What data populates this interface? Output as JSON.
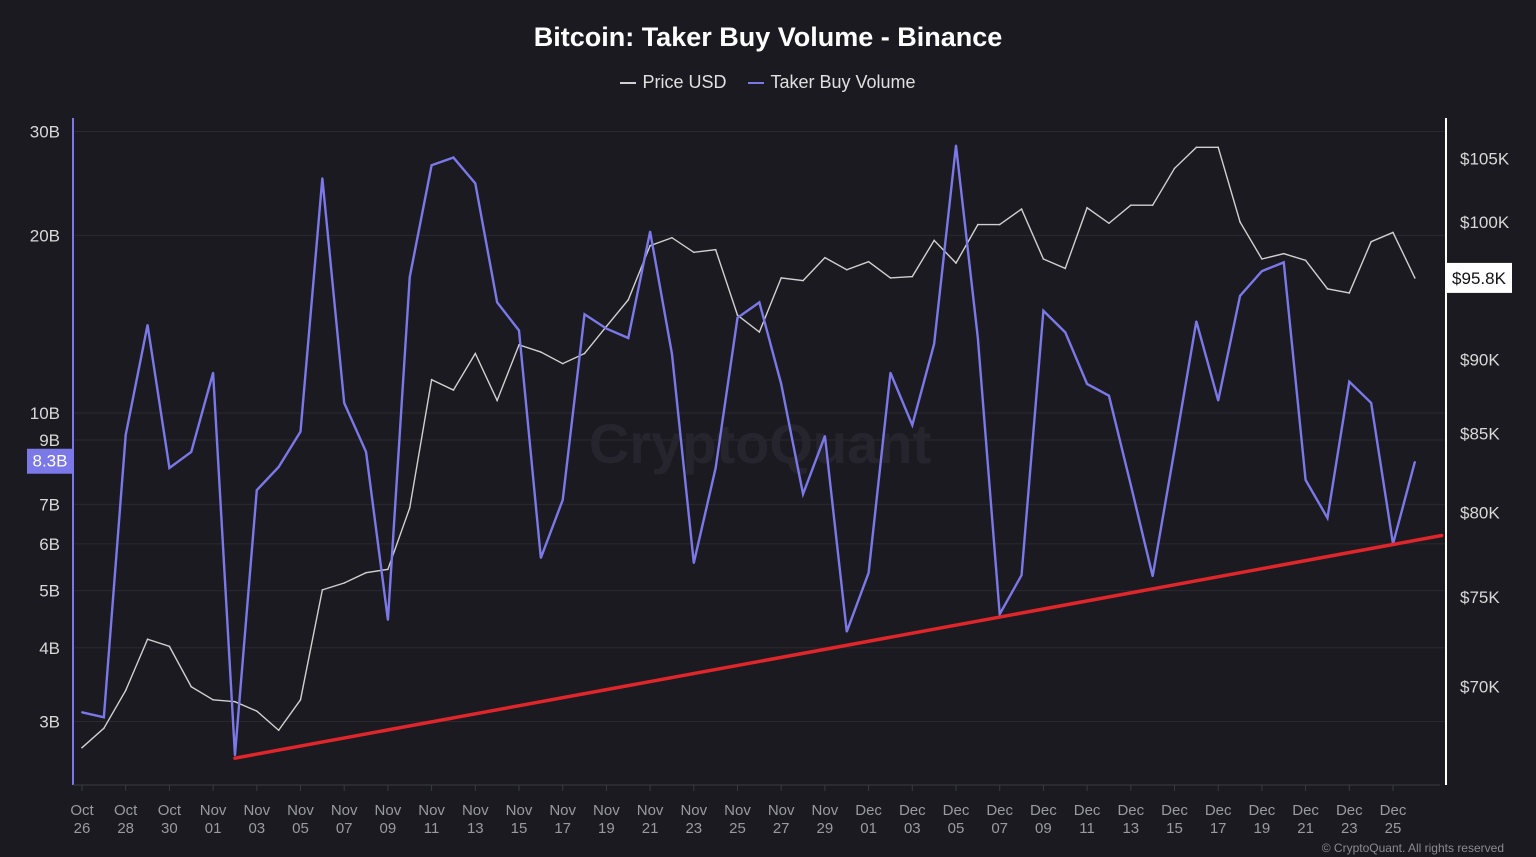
{
  "title": "Bitcoin: Taker Buy Volume - Binance",
  "watermark": "CryptoQuant",
  "footer": "© CryptoQuant. All rights reserved",
  "colors": {
    "background": "#1b1a20",
    "volume": "#7b78e8",
    "price": "#d0d0d0",
    "trendline": "#e0262b"
  },
  "chart_data": {
    "type": "line",
    "title": "Bitcoin: Taker Buy Volume - Binance",
    "legend_position": "top",
    "grid": true,
    "x": [
      "Oct 26",
      "Oct 27",
      "Oct 28",
      "Oct 29",
      "Oct 30",
      "Oct 31",
      "Nov 01",
      "Nov 02",
      "Nov 03",
      "Nov 04",
      "Nov 05",
      "Nov 06",
      "Nov 07",
      "Nov 08",
      "Nov 09",
      "Nov 10",
      "Nov 11",
      "Nov 12",
      "Nov 13",
      "Nov 14",
      "Nov 15",
      "Nov 16",
      "Nov 17",
      "Nov 18",
      "Nov 19",
      "Nov 20",
      "Nov 21",
      "Nov 22",
      "Nov 23",
      "Nov 24",
      "Nov 25",
      "Nov 26",
      "Nov 27",
      "Nov 28",
      "Nov 29",
      "Nov 30",
      "Dec 01",
      "Dec 02",
      "Dec 03",
      "Dec 04",
      "Dec 05",
      "Dec 06",
      "Dec 07",
      "Dec 08",
      "Dec 09",
      "Dec 10",
      "Dec 11",
      "Dec 12",
      "Dec 13",
      "Dec 14",
      "Dec 15",
      "Dec 16",
      "Dec 17",
      "Dec 18",
      "Dec 19",
      "Dec 20",
      "Dec 21",
      "Dec 22",
      "Dec 23",
      "Dec 24",
      "Dec 25",
      "Dec 26"
    ],
    "x_tick_labels": [
      "Oct 26",
      "Oct 28",
      "Oct 30",
      "Nov 01",
      "Nov 03",
      "Nov 05",
      "Nov 07",
      "Nov 09",
      "Nov 11",
      "Nov 13",
      "Nov 15",
      "Nov 17",
      "Nov 19",
      "Nov 21",
      "Nov 23",
      "Nov 25",
      "Nov 27",
      "Nov 29",
      "Dec 01",
      "Dec 03",
      "Dec 05",
      "Dec 07",
      "Dec 09",
      "Dec 11",
      "Dec 13",
      "Dec 15",
      "Dec 17",
      "Dec 19",
      "Dec 21",
      "Dec 23",
      "Dec 25"
    ],
    "series": [
      {
        "name": "Price USD",
        "axis": "right",
        "unit": "USD (K)",
        "values": [
          66.8,
          67.8,
          69.8,
          72.6,
          72.2,
          70.0,
          69.3,
          69.2,
          68.7,
          67.7,
          69.3,
          75.4,
          75.8,
          76.4,
          76.6,
          80.3,
          88.6,
          87.9,
          90.4,
          87.2,
          91.0,
          90.5,
          89.7,
          90.4,
          92.3,
          94.2,
          98.2,
          98.8,
          97.7,
          97.9,
          93.1,
          91.9,
          95.8,
          95.6,
          97.3,
          96.4,
          97.0,
          95.8,
          95.9,
          98.6,
          96.9,
          99.8,
          99.8,
          101.0,
          97.2,
          96.5,
          101.1,
          99.9,
          101.3,
          101.3,
          104.2,
          105.9,
          105.9,
          100.0,
          97.2,
          97.6,
          97.1,
          95.0,
          94.7,
          98.5,
          99.2,
          95.8
        ]
      },
      {
        "name": "Taker Buy Volume",
        "axis": "left",
        "unit": "B",
        "values": [
          3.11,
          3.05,
          9.18,
          14.1,
          8.07,
          8.59,
          11.7,
          2.63,
          7.4,
          8.1,
          9.3,
          25.0,
          10.4,
          8.59,
          4.46,
          17.0,
          26.3,
          27.1,
          24.5,
          15.4,
          13.8,
          5.68,
          7.12,
          14.7,
          13.9,
          13.4,
          20.3,
          12.6,
          5.57,
          8.07,
          14.5,
          15.4,
          11.2,
          7.29,
          9.14,
          4.26,
          5.36,
          11.7,
          9.54,
          13.1,
          28.4,
          13.4,
          4.56,
          5.31,
          14.9,
          13.7,
          11.2,
          10.7,
          7.55,
          5.29,
          8.66,
          14.3,
          10.5,
          15.8,
          17.4,
          18.0,
          7.7,
          6.64,
          11.3,
          10.4,
          6.0,
          8.26
        ]
      }
    ],
    "left_axis": {
      "scale": "log",
      "ticks": [
        "30B",
        "20B",
        "10B",
        "9B",
        "7B",
        "6B",
        "5B",
        "4B",
        "3B"
      ],
      "tick_values": [
        30,
        20,
        10,
        9,
        7,
        6,
        5,
        4,
        3
      ],
      "current_label": "8.3B",
      "current_value": 8.3
    },
    "right_axis": {
      "scale": "log",
      "ticks": [
        "$105K",
        "$100K",
        "$90K",
        "$85K",
        "$80K",
        "$75K",
        "$70K"
      ],
      "tick_values": [
        105,
        100,
        90,
        85,
        80,
        75,
        70
      ],
      "current_label": "$95.8K",
      "current_value": 95.8
    },
    "annotations": [
      {
        "type": "trendline",
        "color": "#e0262b",
        "start": {
          "x": "Nov 02",
          "value": 2.6
        },
        "end": {
          "x": "Dec 27",
          "value": 6.2
        }
      }
    ]
  }
}
